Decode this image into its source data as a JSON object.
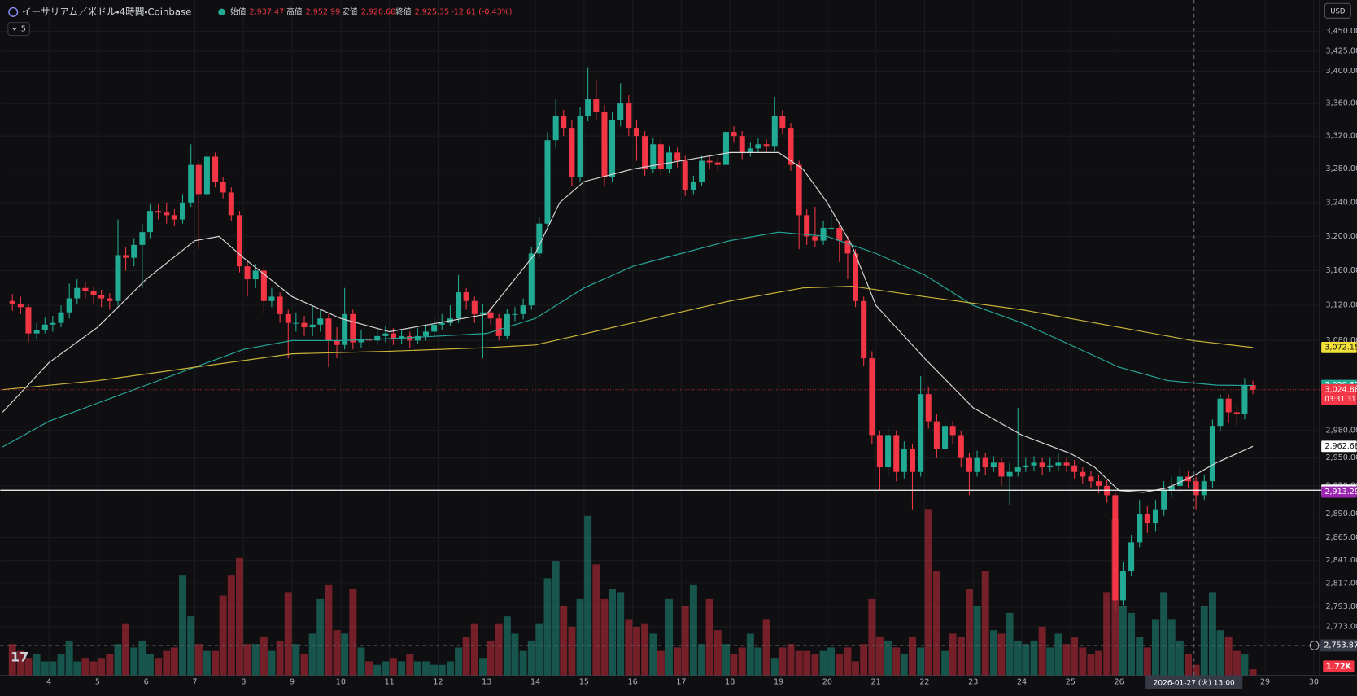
{
  "header": {
    "symbol": "イーサリアム／米ドル・4時間・Coinbase",
    "open_label": "始値",
    "open": "2,937.47",
    "high_label": "高値",
    "high": "2,952.99",
    "low_label": "安値",
    "low": "2,920.68",
    "close_label": "終値",
    "close": "2,925.35",
    "change": "-12.61 (-0.43%)",
    "indicator_count": "5",
    "currency": "USD"
  },
  "chart_data": {
    "type": "candlestick",
    "x": [
      3.25,
      3.42,
      3.58,
      3.75,
      3.92,
      4.08,
      4.25,
      4.42,
      4.58,
      4.75,
      4.92,
      5.08,
      5.25,
      5.42,
      5.58,
      5.75,
      5.92,
      6.08,
      6.25,
      6.42,
      6.58,
      6.75,
      6.92,
      7.08,
      7.25,
      7.42,
      7.58,
      7.75,
      7.92,
      8.08,
      8.25,
      8.42,
      8.58,
      8.75,
      8.92,
      9.08,
      9.25,
      9.42,
      9.58,
      9.75,
      9.92,
      10.08,
      10.25,
      10.42,
      10.58,
      10.75,
      10.92,
      11.08,
      11.25,
      11.42,
      11.58,
      11.75,
      11.92,
      12.08,
      12.25,
      12.42,
      12.58,
      12.75,
      12.92,
      13.08,
      13.25,
      13.42,
      13.58,
      13.75,
      13.92,
      14.08,
      14.25,
      14.42,
      14.58,
      14.75,
      14.92,
      15.08,
      15.25,
      15.42,
      15.58,
      15.75,
      15.92,
      16.08,
      16.25,
      16.42,
      16.58,
      16.75,
      16.92,
      17.08,
      17.25,
      17.42,
      17.58,
      17.75,
      17.92,
      18.08,
      18.25,
      18.42,
      18.58,
      18.75,
      18.92,
      19.08,
      19.25,
      19.42,
      19.58,
      19.75,
      19.92,
      20.08,
      20.25,
      20.42,
      20.58,
      20.75,
      20.92,
      21.08,
      21.25,
      21.42,
      21.58,
      21.75,
      21.92,
      22.08,
      22.25,
      22.42,
      22.58,
      22.75,
      22.92,
      23.08,
      23.25,
      23.42,
      23.58,
      23.75,
      23.92,
      24.08,
      24.25,
      24.42,
      24.58,
      24.75,
      24.92,
      25.08,
      25.25,
      25.42,
      25.58,
      25.75,
      25.92,
      26.08,
      26.25,
      26.42,
      26.58,
      26.75,
      26.92,
      27.08,
      27.25,
      27.42,
      27.58,
      27.75,
      27.92,
      28.08,
      28.25,
      28.42,
      28.58,
      28.75
    ],
    "open": [
      3125,
      3122,
      3118,
      3088,
      3092,
      3098,
      3100,
      3112,
      3128,
      3140,
      3136,
      3132,
      3128,
      3125,
      3178,
      3175,
      3190,
      3205,
      3230,
      3228,
      3225,
      3220,
      3240,
      3285,
      3250,
      3295,
      3265,
      3252,
      3225,
      3165,
      3150,
      3160,
      3125,
      3130,
      3110,
      3100,
      3100,
      3095,
      3098,
      3105,
      3080,
      3075,
      3110,
      3078,
      3082,
      3080,
      3085,
      3088,
      3082,
      3085,
      3080,
      3085,
      3090,
      3098,
      3100,
      3105,
      3135,
      3125,
      3110,
      3112,
      3105,
      3085,
      3110,
      3110,
      3120,
      3180,
      3215,
      3315,
      3345,
      3330,
      3270,
      3345,
      3365,
      3350,
      3270,
      3340,
      3360,
      3330,
      3320,
      3280,
      3310,
      3280,
      3300,
      3290,
      3255,
      3265,
      3290,
      3288,
      3285,
      3325,
      3320,
      3300,
      3305,
      3310,
      3308,
      3345,
      3330,
      3285,
      3225,
      3200,
      3195,
      3210,
      3210,
      3195,
      3180,
      3125,
      3060,
      2975,
      2940,
      2975,
      2935,
      2960,
      2935,
      3020,
      2990,
      2960,
      2985,
      2975,
      2950,
      2935,
      2950,
      2940,
      2945,
      2930,
      2935,
      2940,
      2942,
      2945,
      2940,
      2942,
      2945,
      2942,
      2935,
      2930,
      2925,
      2920,
      2910,
      2800,
      2830,
      2860,
      2890,
      2880,
      2895,
      2915,
      2920,
      2930,
      2925,
      2910,
      2925,
      2985,
      3015,
      3000,
      2998,
      3030
    ],
    "high": [
      3133,
      3130,
      3122,
      3100,
      3106,
      3108,
      3120,
      3145,
      3150,
      3146,
      3142,
      3138,
      3134,
      3220,
      3188,
      3198,
      3215,
      3238,
      3238,
      3240,
      3232,
      3250,
      3310,
      3290,
      3302,
      3300,
      3270,
      3258,
      3230,
      3172,
      3168,
      3165,
      3140,
      3135,
      3115,
      3112,
      3108,
      3120,
      3115,
      3110,
      3095,
      3140,
      3115,
      3092,
      3090,
      3095,
      3096,
      3094,
      3092,
      3090,
      3094,
      3098,
      3105,
      3110,
      3120,
      3155,
      3140,
      3130,
      3122,
      3118,
      3110,
      3116,
      3118,
      3128,
      3188,
      3222,
      3325,
      3365,
      3352,
      3340,
      3355,
      3405,
      3390,
      3358,
      3350,
      3385,
      3370,
      3340,
      3326,
      3318,
      3316,
      3308,
      3306,
      3296,
      3272,
      3296,
      3296,
      3294,
      3330,
      3332,
      3326,
      3312,
      3318,
      3316,
      3368,
      3352,
      3336,
      3290,
      3232,
      3235,
      3218,
      3228,
      3215,
      3200,
      3185,
      3130,
      3068,
      2980,
      2985,
      2980,
      2968,
      2965,
      3040,
      3028,
      2998,
      2992,
      2990,
      2980,
      2955,
      2958,
      2955,
      2952,
      2950,
      2945,
      3005,
      2950,
      2952,
      2950,
      2950,
      2955,
      2950,
      2948,
      2940,
      2936,
      2932,
      2926,
      2914,
      2840,
      2868,
      2905,
      2898,
      2905,
      2925,
      2930,
      2940,
      2936,
      2930,
      2932,
      2992,
      3020,
      3020,
      3008,
      3038,
      3035
    ],
    "low": [
      3114,
      3110,
      3078,
      3082,
      3088,
      3090,
      3095,
      3105,
      3122,
      3128,
      3122,
      3118,
      3115,
      3120,
      3160,
      3165,
      3140,
      3198,
      3220,
      3215,
      3212,
      3215,
      3235,
      3185,
      3245,
      3258,
      3245,
      3218,
      3158,
      3130,
      3140,
      3110,
      3118,
      3100,
      3060,
      3090,
      3085,
      3085,
      3090,
      3050,
      3060,
      3070,
      3070,
      3072,
      3072,
      3075,
      3078,
      3075,
      3076,
      3072,
      3076,
      3080,
      3085,
      3092,
      3096,
      3100,
      3115,
      3100,
      3060,
      3098,
      3080,
      3082,
      3102,
      3104,
      3115,
      3175,
      3210,
      3305,
      3320,
      3260,
      3265,
      3338,
      3340,
      3260,
      3265,
      3332,
      3320,
      3290,
      3272,
      3275,
      3272,
      3275,
      3282,
      3248,
      3250,
      3260,
      3280,
      3278,
      3280,
      3312,
      3292,
      3295,
      3300,
      3300,
      3302,
      3322,
      3278,
      3185,
      3190,
      3188,
      3190,
      3202,
      3170,
      3150,
      3118,
      3052,
      2965,
      2915,
      2930,
      2925,
      2928,
      2895,
      2930,
      2982,
      2950,
      2955,
      2965,
      2940,
      2910,
      2930,
      2932,
      2935,
      2920,
      2900,
      2930,
      2935,
      2936,
      2932,
      2935,
      2936,
      2935,
      2928,
      2922,
      2918,
      2912,
      2902,
      2790,
      2795,
      2825,
      2855,
      2870,
      2872,
      2888,
      2908,
      2912,
      2918,
      2895,
      2905,
      2918,
      2980,
      2988,
      2985,
      2992,
      3020
    ],
    "close": [
      3122,
      3118,
      3088,
      3092,
      3098,
      3100,
      3112,
      3128,
      3140,
      3136,
      3132,
      3128,
      3125,
      3178,
      3175,
      3190,
      3205,
      3230,
      3228,
      3225,
      3220,
      3240,
      3285,
      3250,
      3295,
      3265,
      3252,
      3225,
      3165,
      3150,
      3160,
      3125,
      3130,
      3110,
      3100,
      3100,
      3095,
      3098,
      3105,
      3080,
      3075,
      3110,
      3078,
      3082,
      3080,
      3085,
      3088,
      3082,
      3085,
      3080,
      3085,
      3090,
      3098,
      3100,
      3105,
      3135,
      3125,
      3110,
      3112,
      3105,
      3085,
      3110,
      3110,
      3120,
      3180,
      3215,
      3315,
      3345,
      3330,
      3270,
      3345,
      3365,
      3350,
      3270,
      3340,
      3360,
      3330,
      3320,
      3280,
      3310,
      3280,
      3300,
      3290,
      3255,
      3265,
      3290,
      3288,
      3285,
      3325,
      3320,
      3300,
      3305,
      3310,
      3308,
      3345,
      3330,
      3285,
      3225,
      3200,
      3195,
      3210,
      3210,
      3195,
      3180,
      3125,
      3060,
      2975,
      2940,
      2975,
      2935,
      2960,
      2935,
      3020,
      2990,
      2960,
      2985,
      2975,
      2950,
      2935,
      2950,
      2940,
      2945,
      2930,
      2935,
      2940,
      2942,
      2945,
      2940,
      2942,
      2945,
      2942,
      2935,
      2930,
      2925,
      2920,
      2910,
      2800,
      2830,
      2860,
      2890,
      2880,
      2895,
      2915,
      2920,
      2930,
      2925,
      2910,
      2925,
      2985,
      3015,
      3000,
      2998,
      3030,
      3024.88
    ],
    "volume": [
      9,
      7,
      5,
      6,
      4,
      4,
      6,
      10,
      4,
      5,
      4,
      5,
      6,
      9,
      15,
      8,
      10,
      6,
      5,
      7,
      8,
      29,
      17,
      9,
      7,
      7,
      23,
      29,
      34,
      9,
      9,
      11,
      7,
      10,
      24,
      9,
      6,
      12,
      22,
      26,
      13,
      12,
      25,
      8,
      4,
      3,
      4,
      5,
      4,
      6,
      4,
      4,
      3,
      3,
      4,
      8,
      11,
      15,
      5,
      10,
      15,
      17,
      12,
      7,
      10,
      15,
      28,
      33,
      20,
      14,
      22,
      46,
      32,
      22,
      25,
      24,
      16,
      14,
      15,
      12,
      7,
      22,
      8,
      20,
      26,
      9,
      22,
      13,
      9,
      6,
      8,
      12,
      8,
      16,
      5,
      8,
      9,
      7,
      7,
      6,
      7,
      8,
      6,
      8,
      4,
      9,
      22,
      11,
      10,
      8,
      6,
      11,
      8,
      48,
      30,
      7,
      12,
      11,
      25,
      20,
      30,
      13,
      12,
      18,
      10,
      9,
      10,
      14,
      8,
      12,
      9,
      11,
      8,
      6,
      7,
      24,
      45,
      20,
      18,
      11,
      8,
      16,
      24,
      16,
      10,
      6,
      3,
      20,
      24,
      13,
      11,
      7,
      6,
      1.72
    ],
    "volume_ylim": [
      0,
      195
    ],
    "volume_tag": "1.72K",
    "up_color": "#22ab94",
    "down_color": "#f23645",
    "xlim": [
      3.0,
      30.12
    ],
    "xticks": [
      4,
      5,
      6,
      7,
      8,
      9,
      10,
      11,
      12,
      13,
      14,
      15,
      16,
      17,
      18,
      19,
      20,
      21,
      22,
      23,
      24,
      25,
      26,
      29,
      30
    ],
    "ylim": [
      2724,
      3490
    ],
    "log_scale": true,
    "yticks": [
      {
        "value": 3450,
        "label": "3,450.00"
      },
      {
        "value": 3425,
        "label": "3,425.00"
      },
      {
        "value": 3400,
        "label": "3,400.00"
      },
      {
        "value": 3360,
        "label": "3,360.00"
      },
      {
        "value": 3320,
        "label": "3,320.00"
      },
      {
        "value": 3280,
        "label": "3,280.00"
      },
      {
        "value": 3240,
        "label": "3,240.00"
      },
      {
        "value": 3200,
        "label": "3,200.00"
      },
      {
        "value": 3160,
        "label": "3,160.00"
      },
      {
        "value": 3120,
        "label": "3,120.00"
      },
      {
        "value": 3080,
        "label": "3,080.00"
      },
      {
        "value": 2980,
        "label": "2,980.00"
      },
      {
        "value": 2950,
        "label": "2,950.00"
      },
      {
        "value": 2920,
        "label": "2,920.00"
      },
      {
        "value": 2890,
        "label": "2,890.00"
      },
      {
        "value": 2865,
        "label": "2,865.00"
      },
      {
        "value": 2841,
        "label": "2,841.00"
      },
      {
        "value": 2817,
        "label": "2,817.00"
      },
      {
        "value": 2793,
        "label": "2,793.00"
      },
      {
        "value": 2773,
        "label": "2,773.00"
      }
    ],
    "lines": [
      {
        "color": "#d8d8d8",
        "x": [
          3.05,
          4,
          5,
          6,
          7,
          7.5,
          8,
          9,
          10,
          11,
          12,
          13,
          14,
          14.5,
          15,
          16,
          17,
          18,
          19,
          19.5,
          20,
          20.5,
          21,
          22,
          23,
          24,
          25,
          25.5,
          26,
          26.5,
          27,
          27.5,
          28,
          28.75
        ],
        "values": [
          3000,
          3055,
          3095,
          3150,
          3195,
          3200,
          3175,
          3130,
          3105,
          3090,
          3100,
          3110,
          3180,
          3240,
          3265,
          3280,
          3290,
          3300,
          3300,
          3280,
          3240,
          3190,
          3120,
          3060,
          3005,
          2975,
          2955,
          2940,
          2915,
          2913,
          2918,
          2930,
          2945,
          2962.68
        ]
      },
      {
        "color": "#26a69a",
        "x": [
          3.05,
          4,
          5,
          6,
          7,
          8,
          9,
          10,
          11,
          12,
          13,
          14,
          15,
          16,
          17,
          18,
          19,
          20,
          21,
          22,
          23,
          24,
          25,
          26,
          27,
          28,
          28.75
        ],
        "values": [
          2962,
          2990,
          3010,
          3030,
          3050,
          3070,
          3080,
          3080,
          3082,
          3085,
          3088,
          3105,
          3140,
          3165,
          3180,
          3195,
          3205,
          3200,
          3180,
          3155,
          3120,
          3100,
          3075,
          3050,
          3035,
          3030,
          3029.62
        ]
      },
      {
        "color": "#c9b43a",
        "x": [
          3.05,
          5,
          7,
          9,
          11,
          13,
          14,
          16,
          18,
          19.5,
          20.5,
          22,
          24,
          26,
          27.5,
          28.75
        ],
        "values": [
          3025,
          3035,
          3050,
          3065,
          3068,
          3072,
          3075,
          3100,
          3125,
          3140,
          3142,
          3130,
          3115,
          3095,
          3080,
          3072.15
        ]
      }
    ],
    "price_line": {
      "value": 3024.88,
      "color": "#f23645"
    },
    "horizontal_line": {
      "value": 2915.37,
      "color": "#ffffff"
    },
    "price_tags": [
      {
        "value": 3072.15,
        "label": "3,072.15",
        "color": "#f2e03a",
        "text_color": "#111111"
      },
      {
        "value": 3029.62,
        "label": "3,029.62",
        "color": "#22ab94",
        "text_color": "#ffffff"
      },
      {
        "value": 3024.88,
        "label": "3,024.88",
        "color": "#f23645",
        "text_color": "#ffffff",
        "sub": "03:31:31"
      },
      {
        "value": 2962.68,
        "label": "2,962.68",
        "color": "#ffffff",
        "text_color": "#111111"
      },
      {
        "value": 2915.37,
        "label": "2,915.37",
        "color": "#ffffff",
        "text_color": "#111111"
      },
      {
        "value": 2913.29,
        "label": "2,913.29",
        "color": "#9c27b0",
        "text_color": "#ffffff"
      }
    ],
    "crosshair": {
      "x": 27.54,
      "y": 2753.87,
      "x_label": "2026-01-27 (火)   13:00",
      "y_label": "2,753.87"
    }
  }
}
